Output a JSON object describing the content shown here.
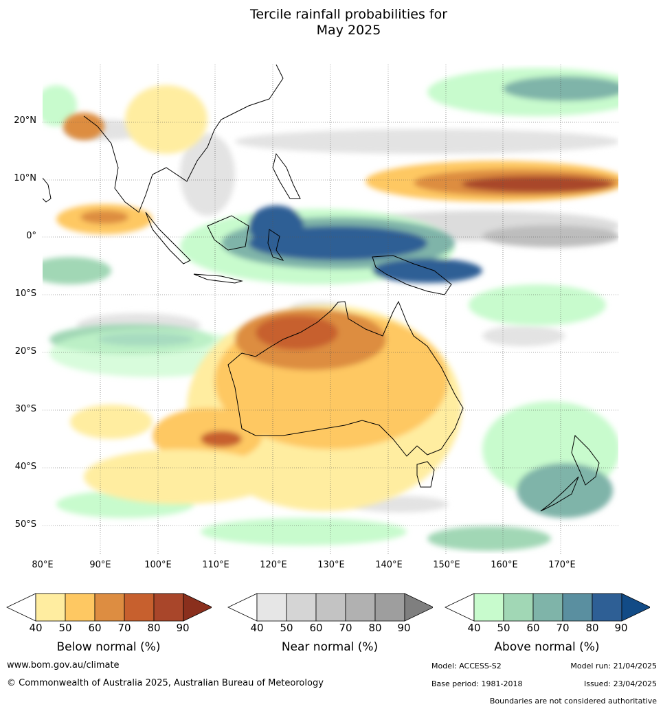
{
  "title": {
    "line1": "Tercile rainfall probabilities for",
    "line2": "May 2025"
  },
  "map": {
    "latitude_labels": [
      "20°N",
      "10°N",
      "0°",
      "10°S",
      "20°S",
      "30°S",
      "40°S",
      "50°S"
    ],
    "longitude_labels": [
      "80°E",
      "90°E",
      "100°E",
      "110°E",
      "120°E",
      "130°E",
      "140°E",
      "150°E",
      "160°E",
      "170°E"
    ],
    "lon_range": [
      80,
      180
    ],
    "lat_range": [
      -55,
      30
    ],
    "features": {
      "below_normal_strong": [
        "north-west Pacific band near 10°N, 140°E–180°E",
        "north-western Australia",
        "western Indian Ocean near 90°E, 2°N"
      ],
      "below_normal_moderate": [
        "most of Australia",
        "southern Indian Ocean 110°E–130°E, 30°S–40°S",
        "Bay of Bengal / Indochina"
      ],
      "near_normal": [
        "equatorial western Pacific 150°E–180°E",
        "scattered across Indian Ocean"
      ],
      "above_normal_strong": [
        "Indonesia / Maritime Continent",
        "New Guinea region",
        "Indian Ocean band near 18°S"
      ],
      "above_normal_moderate": [
        "south-west Pacific",
        "Southern Ocean",
        "north-west Pacific 20°N–30°N"
      ]
    }
  },
  "legends": [
    {
      "label": "Below normal (%)",
      "ticks": [
        "40",
        "50",
        "60",
        "70",
        "80",
        "90"
      ],
      "colors": [
        "#ffffff",
        "#ffeda0",
        "#fec862",
        "#dd8d41",
        "#c7602e",
        "#a9462a",
        "#8a2f1d"
      ]
    },
    {
      "label": "Near normal (%)",
      "ticks": [
        "40",
        "50",
        "60",
        "70",
        "80",
        "90"
      ],
      "colors": [
        "#ffffff",
        "#e6e6e6",
        "#d5d5d5",
        "#c3c3c3",
        "#b1b1b1",
        "#9e9e9e",
        "#7f7f7f"
      ]
    },
    {
      "label": "Above normal (%)",
      "ticks": [
        "40",
        "50",
        "60",
        "70",
        "80",
        "90"
      ],
      "colors": [
        "#ffffff",
        "#c8fbcd",
        "#a1d7b5",
        "#7fb4a9",
        "#5a8fa0",
        "#2e5f95",
        "#124b86"
      ]
    }
  ],
  "footer": {
    "website": "www.bom.gov.au/climate",
    "copyright": "© Commonwealth of Australia 2025, Australian Bureau of Meteorology",
    "model": "Model: ACCESS-S2",
    "model_run": "Model run: 21/04/2025",
    "base_period": "Base period: 1981-2018",
    "issued": "Issued: 23/04/2025",
    "disclaimer": "Boundaries are not considered authoritative"
  }
}
